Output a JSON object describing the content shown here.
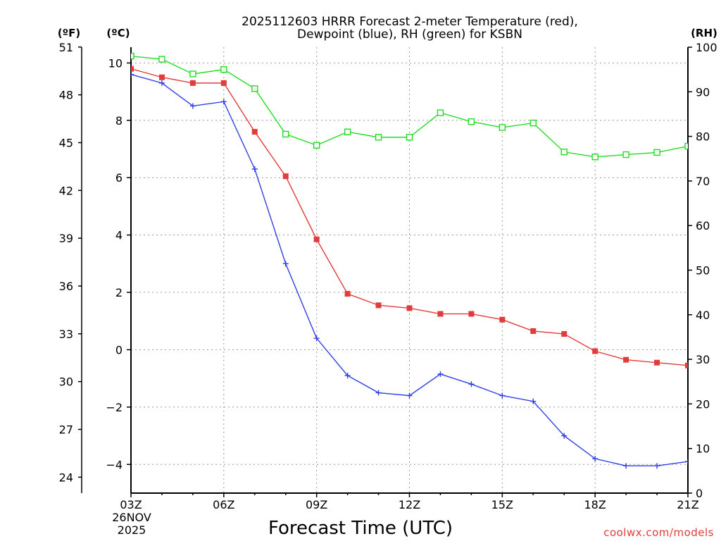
{
  "chart_data": {
    "type": "line",
    "title_line1": "2025112603 HRRR Forecast 2-meter Temperature (red),",
    "title_line2": "Dewpoint (blue), RH (green) for KSBN",
    "xlabel": "Forecast Time (UTC)",
    "date_label_line1": "26NOV",
    "date_label_line2": "2025",
    "credit": "coolwx.com/models",
    "left_unit_f": "(ºF)",
    "left_unit_c": "(ºC)",
    "right_unit": "(RH)",
    "x_hours": [
      3,
      4,
      5,
      6,
      7,
      8,
      9,
      10,
      11,
      12,
      13,
      14,
      15,
      16,
      17,
      18,
      19,
      20,
      21
    ],
    "x_tick_hours": [
      3,
      6,
      9,
      12,
      15,
      18,
      21
    ],
    "x_tick_labels": [
      "03Z",
      "06Z",
      "09Z",
      "12Z",
      "15Z",
      "18Z",
      "21Z"
    ],
    "xlim": [
      3,
      21
    ],
    "celsius_ylim": [
      -5,
      10.55
    ],
    "celsius_ticks": [
      -4,
      -2,
      0,
      2,
      4,
      6,
      8,
      10
    ],
    "celsius_tick_labels": [
      "−4",
      "−2",
      "0",
      "2",
      "4",
      "6",
      "8",
      "10"
    ],
    "fahrenheit_ticks": [
      24,
      27,
      30,
      33,
      36,
      39,
      42,
      45,
      48,
      51
    ],
    "fahrenheit_tick_labels": [
      "24",
      "27",
      "30",
      "33",
      "36",
      "39",
      "42",
      "45",
      "48",
      "51"
    ],
    "rh_ylim": [
      0,
      100
    ],
    "rh_ticks": [
      0,
      10,
      20,
      30,
      40,
      50,
      60,
      70,
      80,
      90,
      100
    ],
    "rh_tick_labels": [
      "0",
      "10",
      "20",
      "30",
      "40",
      "50",
      "60",
      "70",
      "80",
      "90",
      "100"
    ],
    "series": [
      {
        "name": "2-meter Temperature",
        "units": "°C",
        "color": "#e33b3b",
        "marker": "filled-square",
        "values": [
          9.8,
          9.5,
          9.3,
          9.3,
          7.6,
          6.05,
          3.85,
          1.95,
          1.55,
          1.45,
          1.25,
          1.25,
          1.05,
          0.65,
          0.55,
          -0.05,
          -0.35,
          -0.45,
          -0.55
        ]
      },
      {
        "name": "Dewpoint",
        "units": "°C",
        "color": "#2f3fe8",
        "marker": "plus",
        "values": [
          9.6,
          9.3,
          8.5,
          8.65,
          6.3,
          3.0,
          0.4,
          -0.9,
          -1.5,
          -1.6,
          -0.85,
          -1.2,
          -1.6,
          -1.8,
          -3.0,
          -3.8,
          -4.05,
          -4.05,
          -3.9
        ]
      },
      {
        "name": "Relative Humidity",
        "units": "%",
        "color": "#22dd22",
        "marker": "open-square",
        "values": [
          98,
          97.3,
          94,
          95,
          90.7,
          80.5,
          78,
          81,
          79.8,
          79.8,
          85.3,
          83.3,
          82,
          83,
          76.5,
          75.4,
          75.9,
          76.4,
          77.8
        ]
      }
    ]
  }
}
